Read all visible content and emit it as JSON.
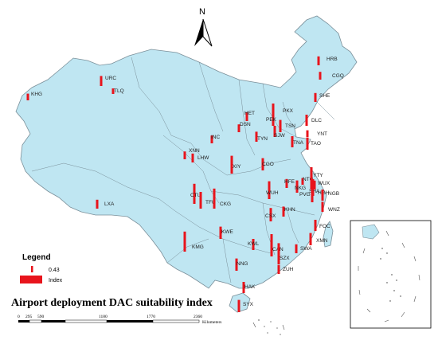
{
  "north_label": "N",
  "legend": {
    "title": "Legend",
    "value_label": "0.43",
    "index_label": "Index",
    "bar_color": "#e8141c"
  },
  "title": "Airport deployment DAC suitability index",
  "scale": {
    "ticks": [
      "0",
      "295",
      "590",
      "1180",
      "1770",
      "2360"
    ],
    "unit": "Kilometers"
  },
  "colors": {
    "land": "#bfe6f2",
    "border": "#7a8f99",
    "bar": "#e8141c"
  },
  "airports": [
    {
      "code": "HRB",
      "value": 0.4
    },
    {
      "code": "CGQ",
      "value": 0.35
    },
    {
      "code": "URC",
      "value": 0.45
    },
    {
      "code": "TLQ",
      "value": 0.25
    },
    {
      "code": "KHG",
      "value": 0.3
    },
    {
      "code": "SHE",
      "value": 0.4
    },
    {
      "code": "PKX",
      "value": 0.55
    },
    {
      "code": "PEK",
      "value": 1.0
    },
    {
      "code": "TSN",
      "value": 0.55
    },
    {
      "code": "DLC",
      "value": 0.5
    },
    {
      "code": "YNT",
      "value": 0.3
    },
    {
      "code": "HET",
      "value": 0.4
    },
    {
      "code": "DSN",
      "value": 0.35
    },
    {
      "code": "SJW",
      "value": 0.5
    },
    {
      "code": "TYN",
      "value": 0.45
    },
    {
      "code": "INC",
      "value": 0.35
    },
    {
      "code": "TNA",
      "value": 0.5
    },
    {
      "code": "TAO",
      "value": 0.55
    },
    {
      "code": "XNN",
      "value": 0.35
    },
    {
      "code": "LHW",
      "value": 0.4
    },
    {
      "code": "XIY",
      "value": 0.8
    },
    {
      "code": "CGO",
      "value": 0.55
    },
    {
      "code": "YTY",
      "value": 0.35
    },
    {
      "code": "NTG",
      "value": 0.3
    },
    {
      "code": "HFE",
      "value": 0.4
    },
    {
      "code": "NKG",
      "value": 0.55
    },
    {
      "code": "WUX",
      "value": 0.4
    },
    {
      "code": "SHA",
      "value": 0.75
    },
    {
      "code": "PVG",
      "value": 1.0
    },
    {
      "code": "HGH",
      "value": 0.75
    },
    {
      "code": "NGB",
      "value": 0.5
    },
    {
      "code": "WUH",
      "value": 0.8
    },
    {
      "code": "CTU",
      "value": 0.9
    },
    {
      "code": "TFU",
      "value": 0.75
    },
    {
      "code": "CKG",
      "value": 0.9
    },
    {
      "code": "LXA",
      "value": 0.4
    },
    {
      "code": "KHN",
      "value": 0.45
    },
    {
      "code": "CSX",
      "value": 0.6
    },
    {
      "code": "WNZ",
      "value": 0.45
    },
    {
      "code": "FOC",
      "value": 0.5
    },
    {
      "code": "KWE",
      "value": 0.55
    },
    {
      "code": "XMN",
      "value": 0.55
    },
    {
      "code": "SWA",
      "value": 0.4
    },
    {
      "code": "KMG",
      "value": 0.9
    },
    {
      "code": "KWL",
      "value": 0.5
    },
    {
      "code": "CAN",
      "value": 1.0
    },
    {
      "code": "SZX",
      "value": 0.95
    },
    {
      "code": "NNG",
      "value": 0.55
    },
    {
      "code": "ZUH",
      "value": 0.4
    },
    {
      "code": "HAK",
      "value": 0.5
    },
    {
      "code": "SYX",
      "value": 0.55
    }
  ]
}
